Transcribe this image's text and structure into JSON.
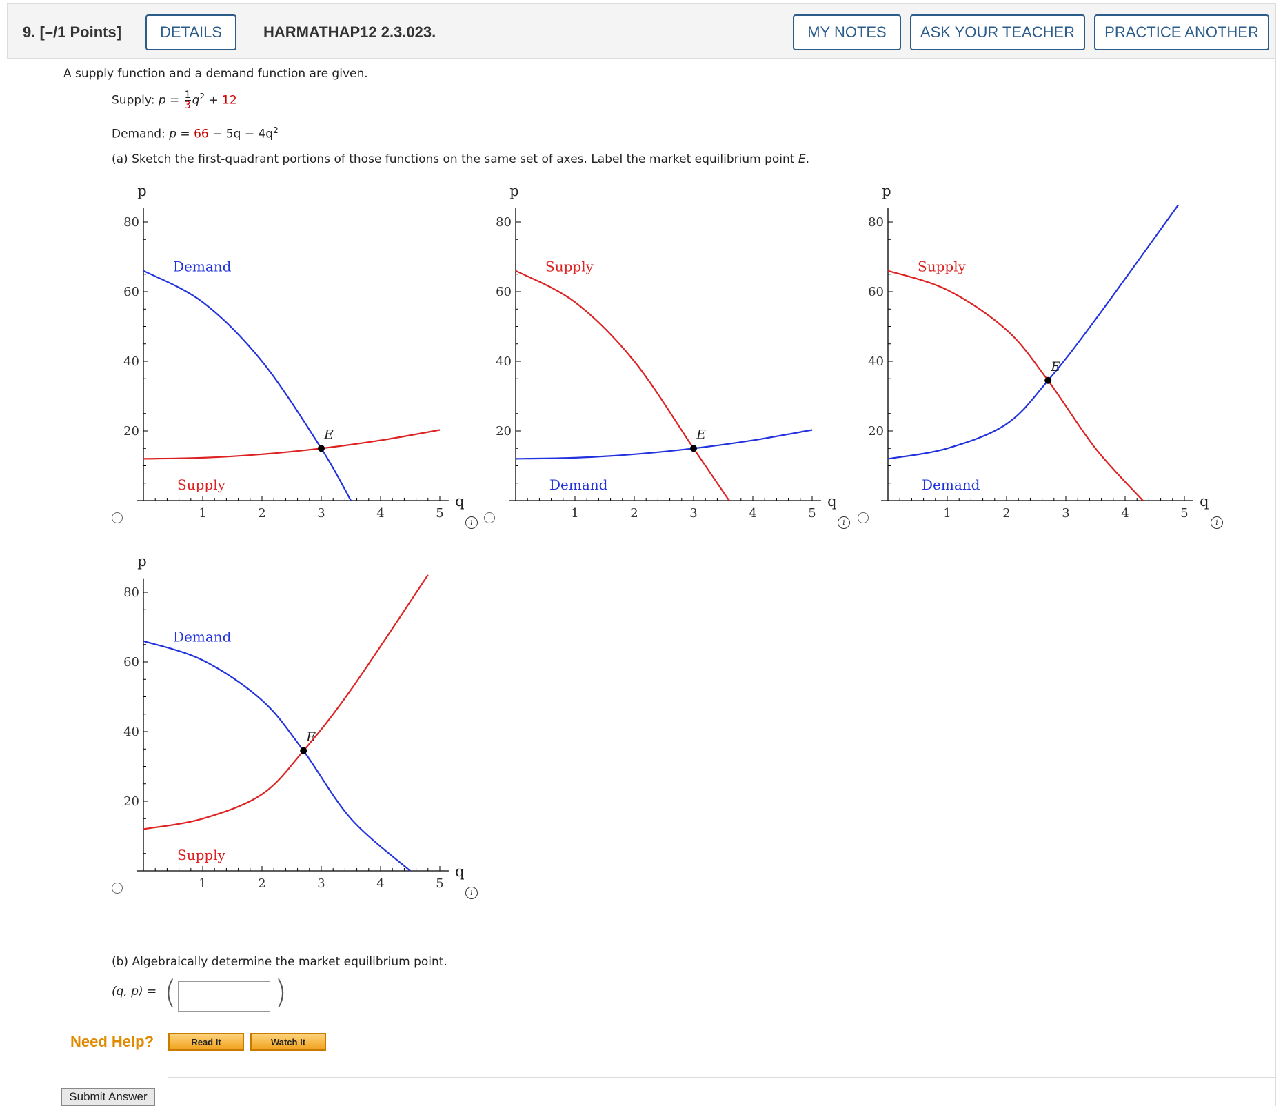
{
  "header": {
    "question_points": "9.  [–/1 Points]",
    "details_label": "DETAILS",
    "problem_code": "HARMATHAP12 2.3.023.",
    "my_notes_label": "MY NOTES",
    "ask_teacher_label": "ASK YOUR TEACHER",
    "practice_another_label": "PRACTICE ANOTHER"
  },
  "problem": {
    "intro": "A supply function and a demand function are given.",
    "supply_label": "Supply: ",
    "supply_p": "p",
    "supply_eq": " = ",
    "supply_frac_num": "1",
    "supply_frac_den": "3",
    "supply_q": "q",
    "supply_exp": "2",
    "supply_plus": " + ",
    "supply_const": "12",
    "demand_label": "Demand: ",
    "demand_p": "p",
    "demand_eq": " = ",
    "demand_const": "66",
    "demand_rest": " − 5q − 4q",
    "demand_exp": "2",
    "part_a": "(a) Sketch the first-quadrant portions of those functions on the same set of axes. Label the market equilibrium point ",
    "part_a_E": "E",
    "part_a_end": ".",
    "part_b": "(b) Algebraically determine the market equilibrium point.",
    "answer_label": "(q, p) = ",
    "answer_value": ""
  },
  "plots": {
    "axis_p": "p",
    "axis_q": "q",
    "y_ticks": [
      "80",
      "60",
      "40",
      "20"
    ],
    "x_ticks": [
      "1",
      "2",
      "3",
      "4",
      "5"
    ],
    "info_glyph": "i",
    "options": [
      {
        "top_label": "Demand",
        "top_color": "#2233dd",
        "bottom_label": "Supply",
        "bottom_color": "#dd2222",
        "point_label": "E"
      },
      {
        "top_label": "Supply",
        "top_color": "#dd2222",
        "bottom_label": "Demand",
        "bottom_color": "#2233dd",
        "point_label": "E"
      },
      {
        "top_label": "Supply",
        "top_color": "#dd2222",
        "bottom_label": "Demand",
        "bottom_color": "#2233dd",
        "point_label": "E"
      },
      {
        "top_label": "Demand",
        "top_color": "#2233dd",
        "bottom_label": "Supply",
        "bottom_color": "#dd2222",
        "point_label": "E"
      }
    ]
  },
  "chart_data": [
    {
      "type": "line",
      "xlabel": "q",
      "ylabel": "p",
      "xlim": [
        0,
        5
      ],
      "ylim": [
        0,
        80
      ],
      "series": [
        {
          "name": "Demand",
          "color": "#2233dd",
          "x": [
            0,
            1,
            2,
            3,
            3.5
          ],
          "y": [
            66,
            57,
            40,
            15,
            0
          ]
        },
        {
          "name": "Supply",
          "color": "#dd2222",
          "x": [
            0,
            1,
            2,
            3,
            4,
            5
          ],
          "y": [
            12,
            12.3,
            13.3,
            15,
            17.3,
            20.3
          ]
        }
      ],
      "point": {
        "label": "E",
        "x": 3,
        "y": 15
      }
    },
    {
      "type": "line",
      "xlabel": "q",
      "ylabel": "p",
      "xlim": [
        0,
        5
      ],
      "ylim": [
        0,
        80
      ],
      "series": [
        {
          "name": "Supply",
          "color": "#dd2222",
          "x": [
            0,
            1,
            2,
            3,
            3.6
          ],
          "y": [
            66,
            57,
            40,
            15,
            0
          ]
        },
        {
          "name": "Demand",
          "color": "#2233dd",
          "x": [
            0,
            1,
            2,
            3,
            4,
            5
          ],
          "y": [
            12,
            12.3,
            13.3,
            15,
            17.3,
            20.3
          ]
        }
      ],
      "point": {
        "label": "E",
        "x": 3,
        "y": 15
      }
    },
    {
      "type": "line",
      "xlabel": "q",
      "ylabel": "p",
      "xlim": [
        0,
        5
      ],
      "ylim": [
        0,
        80
      ],
      "series": [
        {
          "name": "Supply",
          "color": "#dd2222",
          "x": [
            0,
            1,
            2,
            2.7,
            3.5,
            4.3
          ],
          "y": [
            66,
            60.5,
            49,
            34.5,
            15,
            0
          ]
        },
        {
          "name": "Demand",
          "color": "#2233dd",
          "x": [
            0,
            1,
            2,
            2.7,
            3.5,
            4.9
          ],
          "y": [
            12,
            15,
            22,
            34.5,
            52,
            85
          ]
        }
      ],
      "point": {
        "label": "E",
        "x": 2.7,
        "y": 34.5
      }
    },
    {
      "type": "line",
      "xlabel": "q",
      "ylabel": "p",
      "xlim": [
        0,
        5
      ],
      "ylim": [
        0,
        80
      ],
      "series": [
        {
          "name": "Demand",
          "color": "#2233dd",
          "x": [
            0,
            1,
            2,
            2.7,
            3.5,
            4.5
          ],
          "y": [
            66,
            60.5,
            49,
            34.5,
            15,
            0
          ]
        },
        {
          "name": "Supply",
          "color": "#dd2222",
          "x": [
            0,
            1,
            2,
            2.7,
            3.5,
            4.8
          ],
          "y": [
            12,
            15,
            22,
            34.5,
            52,
            85
          ]
        }
      ],
      "point": {
        "label": "E",
        "x": 2.7,
        "y": 34.5
      }
    }
  ],
  "help": {
    "need_help": "Need Help?",
    "read_it": "Read It",
    "watch_it": "Watch It"
  },
  "submit_label": "Submit Answer"
}
